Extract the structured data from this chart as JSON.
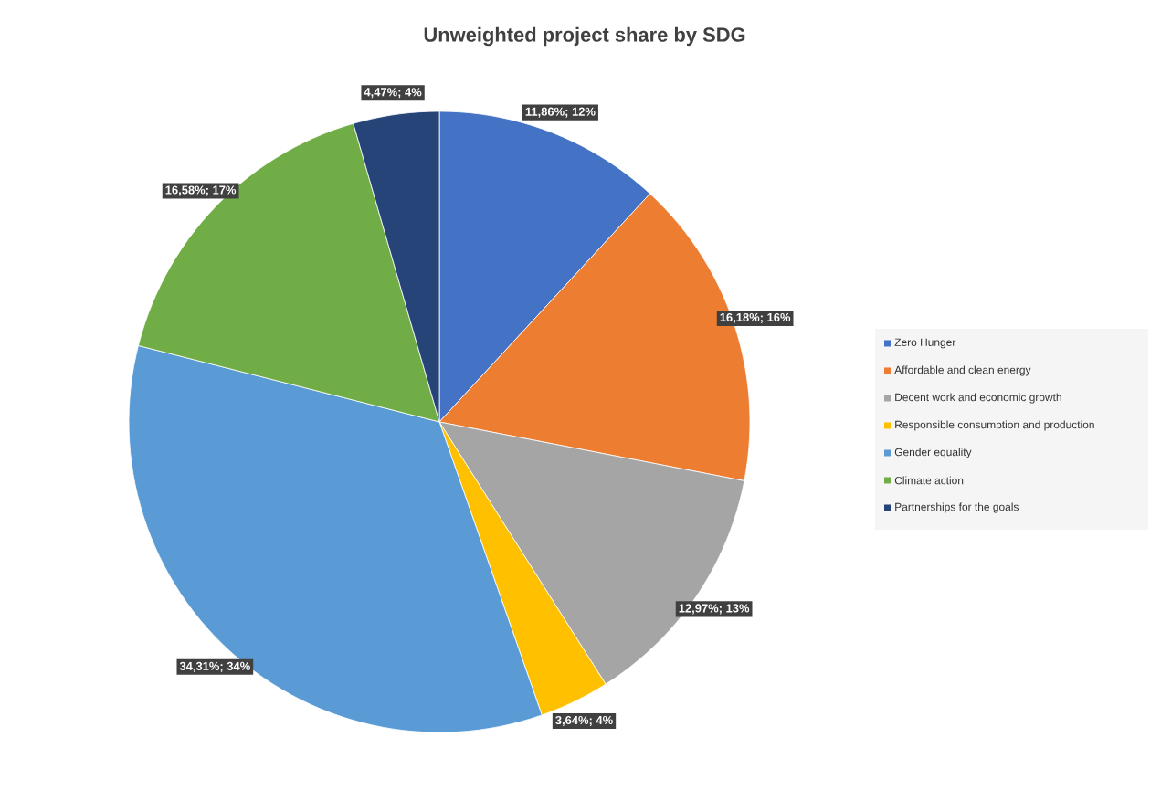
{
  "chart_data": {
    "type": "pie",
    "title": "Unweighted project share by SDG",
    "categories": [
      "Zero Hunger",
      "Affordable and clean energy",
      "Decent work and economic growth",
      "Responsible consumption and production",
      "Gender equality",
      "Climate action",
      "Partnerships for the goals"
    ],
    "values": [
      11.86,
      16.18,
      12.97,
      3.64,
      34.31,
      16.58,
      4.47
    ],
    "colors": [
      "#4472c4",
      "#ed7d31",
      "#a5a5a5",
      "#ffc000",
      "#5b9bd5",
      "#70ad47",
      "#264478"
    ],
    "value_labels": [
      "11,86%; 12%",
      "16,18%; 16%",
      "12,97%; 13%",
      "3,64%; 4%",
      "34,31%; 34%",
      "16,58%; 17%",
      "4,47%; 4%"
    ],
    "legend": "right"
  }
}
